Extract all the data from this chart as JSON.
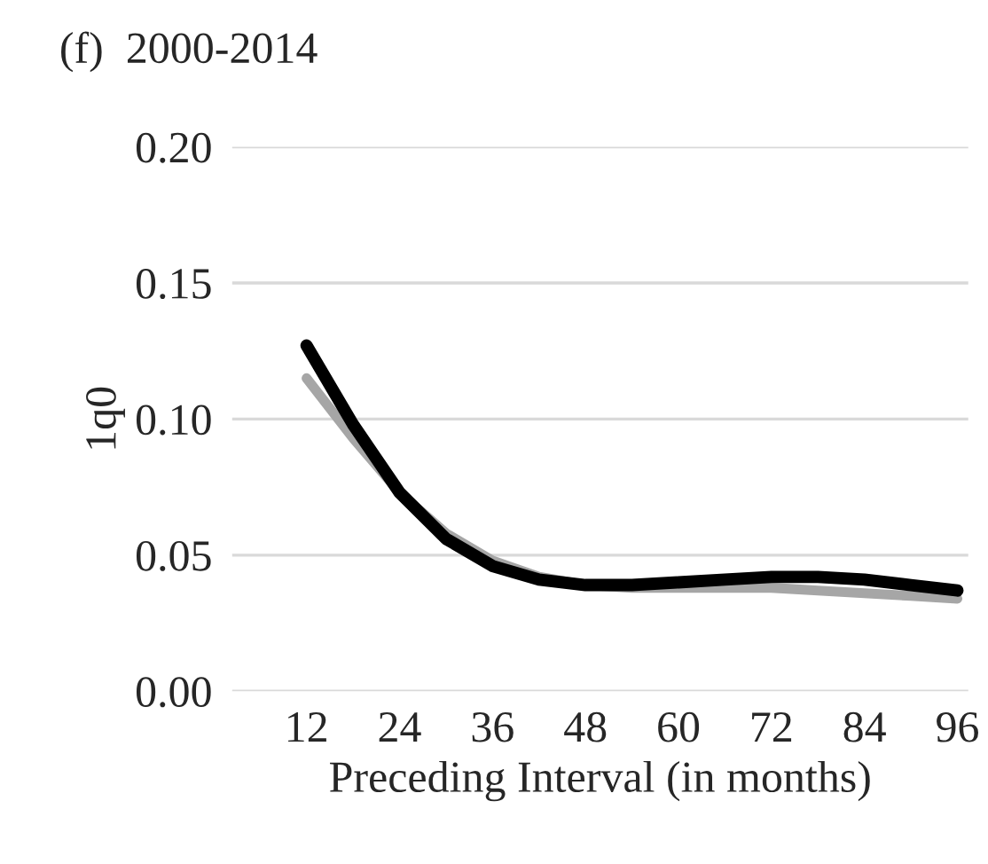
{
  "chart_data": {
    "type": "line",
    "title": "(f)  2000-2014",
    "xlabel": "Preceding Interval (in months)",
    "ylabel": "1q0",
    "x": [
      12,
      18,
      24,
      30,
      36,
      42,
      48,
      54,
      60,
      66,
      72,
      78,
      84,
      90,
      96
    ],
    "series": [
      {
        "color": "#000000",
        "values": [
          0.127,
          0.098,
          0.073,
          0.056,
          0.046,
          0.041,
          0.039,
          0.039,
          0.04,
          0.041,
          0.042,
          0.042,
          0.041,
          0.039,
          0.037
        ]
      },
      {
        "color": "#a6a6a6",
        "values": [
          0.115,
          0.093,
          0.073,
          0.058,
          0.048,
          0.042,
          0.039,
          0.038,
          0.038,
          0.038,
          0.038,
          0.037,
          0.036,
          0.035,
          0.034
        ]
      }
    ],
    "xlim": [
      2.4,
      97.4
    ],
    "xticks": [
      12,
      24,
      36,
      48,
      60,
      72,
      84,
      96
    ],
    "ylim": [
      0,
      0.2
    ],
    "yticks": [
      {
        "value": 0,
        "label": "0.00"
      },
      {
        "value": 0.05,
        "label": "0.05"
      },
      {
        "value": 0.1,
        "label": "0.10"
      },
      {
        "value": 0.15,
        "label": "0.15"
      },
      {
        "value": 0.2,
        "label": "0.20"
      }
    ],
    "grid": "y",
    "legend": false
  }
}
